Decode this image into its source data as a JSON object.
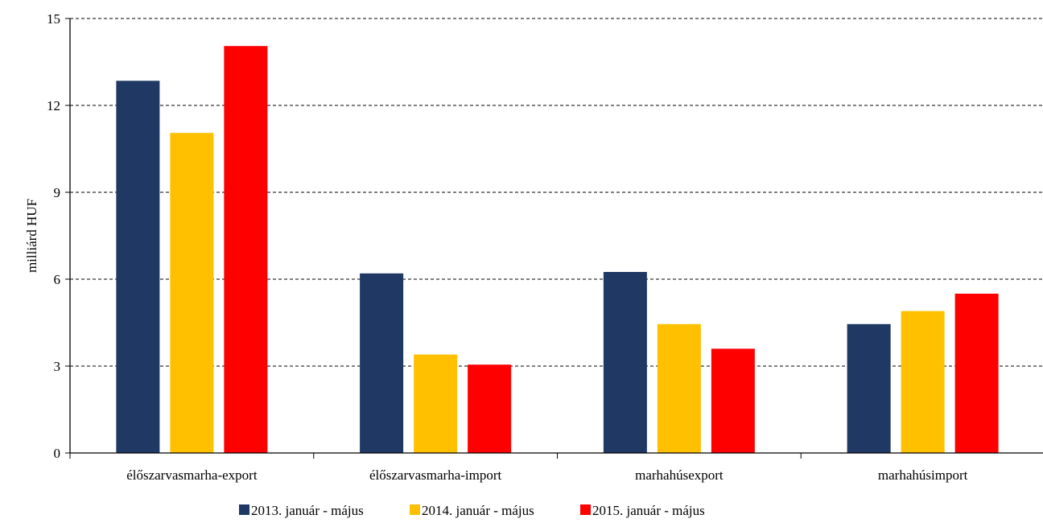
{
  "chart_data": {
    "type": "bar",
    "categories": [
      "élőszarvasmarha-export",
      "élőszarvasmarha-import",
      "marhahúsexport",
      "marhahúsimport"
    ],
    "series": [
      {
        "name": "2013. január - május",
        "color": "#1F3864",
        "values": [
          12.85,
          6.2,
          6.25,
          4.45
        ]
      },
      {
        "name": "2014. január - május",
        "color": "#FFC000",
        "values": [
          11.05,
          3.4,
          4.45,
          4.9
        ]
      },
      {
        "name": "2015. január - május",
        "color": "#FF0000",
        "values": [
          14.05,
          3.05,
          3.6,
          5.5
        ]
      }
    ],
    "ylabel": "milliárd HUF",
    "ylim": [
      0,
      15
    ],
    "yticks": [
      0,
      3,
      6,
      9,
      12,
      15
    ],
    "grid": "dashed-horizontal",
    "legend": "bottom-center"
  }
}
